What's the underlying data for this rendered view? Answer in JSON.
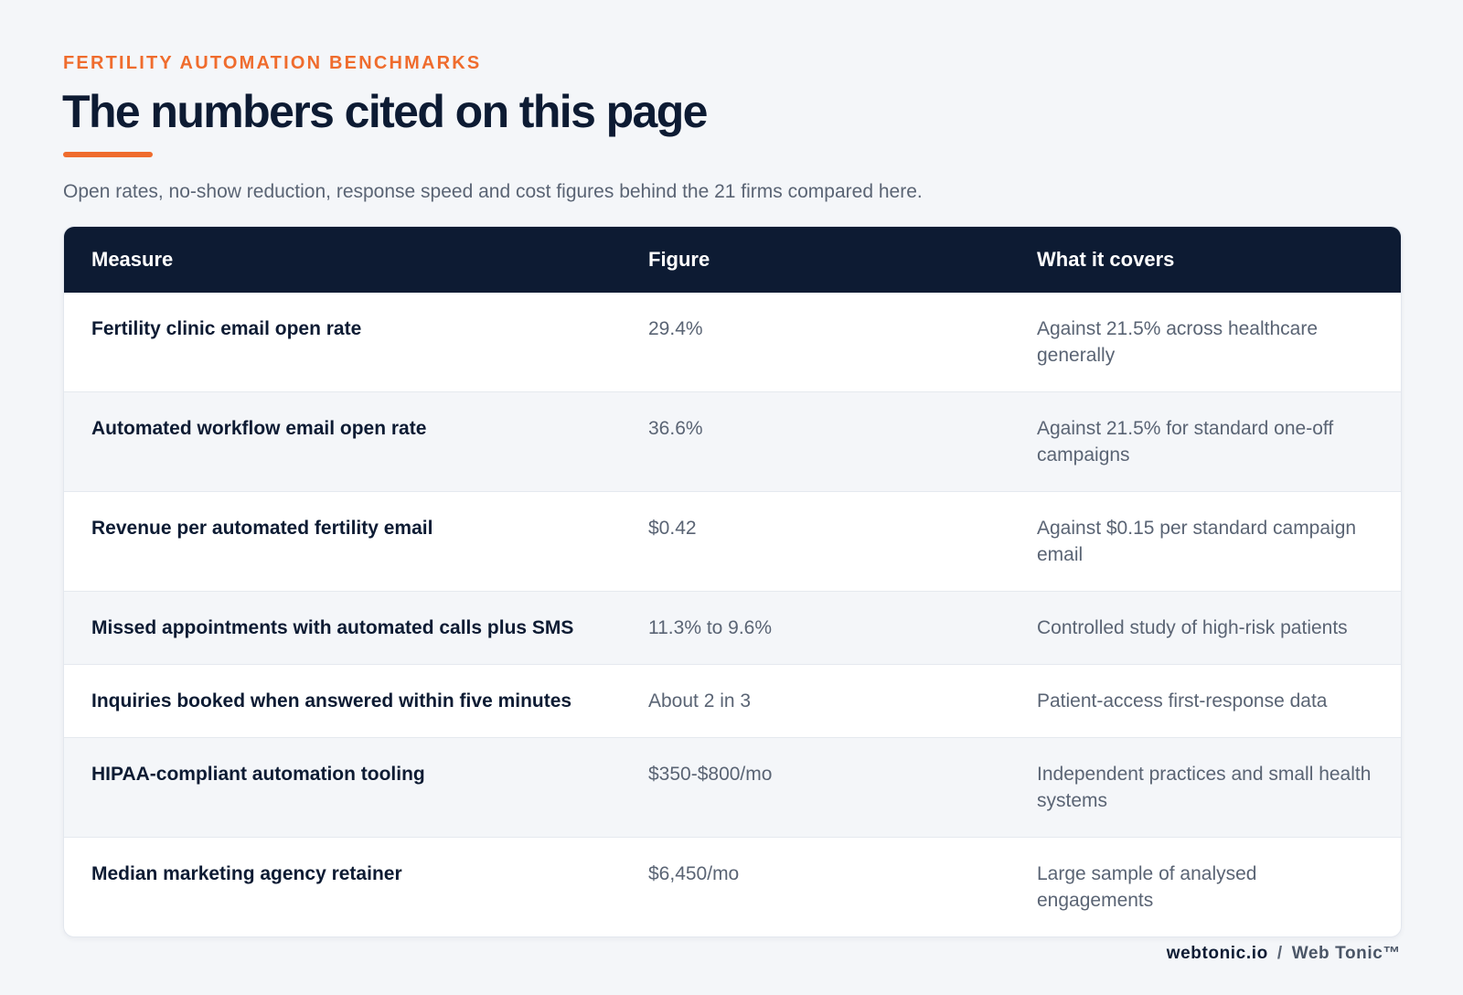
{
  "header": {
    "eyebrow": "FERTILITY AUTOMATION BENCHMARKS",
    "title": "The numbers cited on this page",
    "subtitle": "Open rates, no-show reduction, response speed and cost figures behind the 21 firms compared here."
  },
  "table": {
    "columns": [
      "Measure",
      "Figure",
      "What it covers"
    ],
    "rows": [
      [
        "Fertility clinic email open rate",
        "29.4%",
        "Against 21.5% across healthcare generally"
      ],
      [
        "Automated workflow email open rate",
        "36.6%",
        "Against 21.5% for standard one-off campaigns"
      ],
      [
        "Revenue per automated fertility email",
        "$0.42",
        "Against $0.15 per standard campaign email"
      ],
      [
        "Missed appointments with automated calls plus SMS",
        "11.3% to 9.6%",
        "Controlled study of high-risk patients"
      ],
      [
        "Inquiries booked when answered within five minutes",
        "About 2 in 3",
        "Patient-access first-response data"
      ],
      [
        "HIPAA-compliant automation tooling",
        "$350-$800/mo",
        "Independent practices and small health systems"
      ],
      [
        "Median marketing agency retainer",
        "$6,450/mo",
        "Large sample of analysed engagements"
      ]
    ]
  },
  "footer": {
    "site": "webtonic.io",
    "separator": "/",
    "brand": "Web Tonic™"
  },
  "colors": {
    "accent": "#ef6c2d",
    "navy": "#0d1b33",
    "muted": "#5a6474",
    "background": "#f4f6f9"
  }
}
